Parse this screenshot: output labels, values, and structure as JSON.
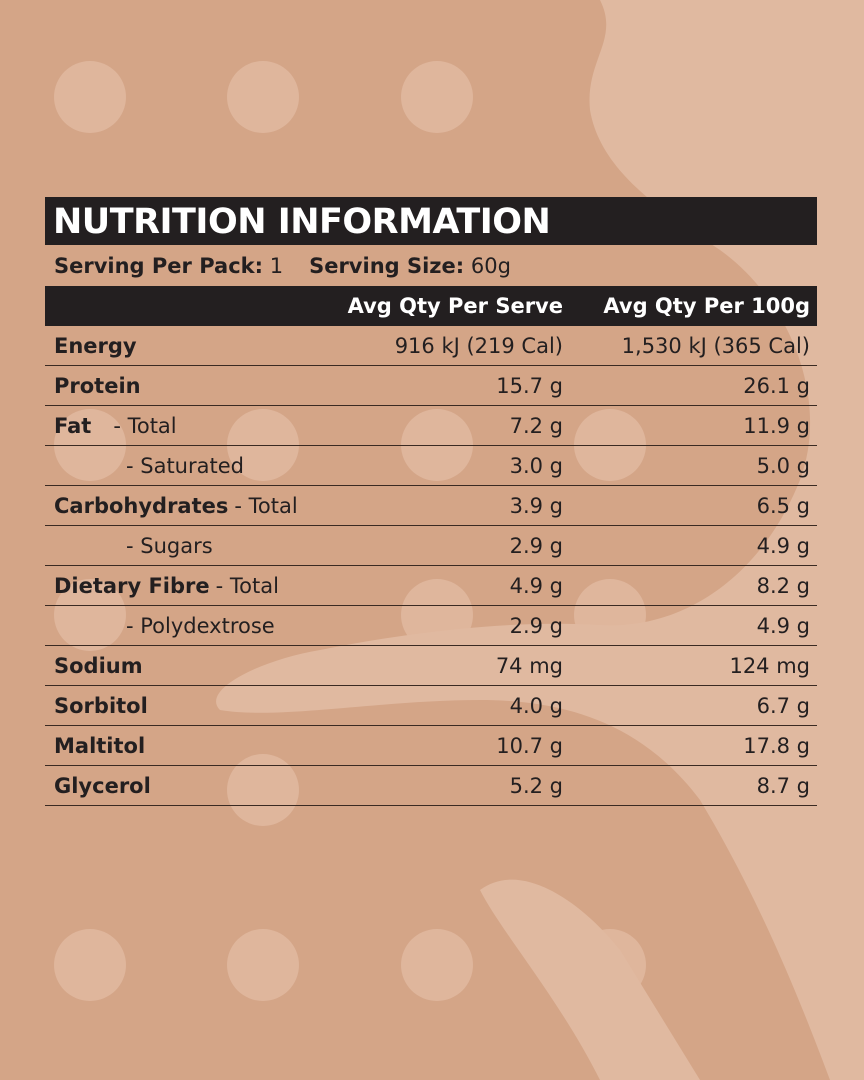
{
  "title": "NUTRITION INFORMATION",
  "serving": {
    "per_pack_label": "Serving Per Pack:",
    "per_pack_value": "1",
    "size_label": "Serving Size:",
    "size_value": "60g"
  },
  "columns": [
    "Avg Qty Per Serve",
    "Avg Qty Per 100g"
  ],
  "rows": [
    {
      "name": "Energy",
      "qualifier": "",
      "serve": "916 kJ (219 Cal)",
      "per100": "1,530 kJ (365 Cal)"
    },
    {
      "name": "Protein",
      "qualifier": "",
      "serve": "15.7 g",
      "per100": "26.1 g"
    },
    {
      "name": "Fat",
      "qualifier": "- Total",
      "serve": "7.2 g",
      "per100": "11.9 g"
    },
    {
      "name": "",
      "qualifier": "- Saturated",
      "serve": "3.0 g",
      "per100": "5.0 g"
    },
    {
      "name": "Carbohydrates",
      "qualifier": "- Total",
      "serve": "3.9 g",
      "per100": "6.5 g"
    },
    {
      "name": "",
      "qualifier": "- Sugars",
      "serve": "2.9 g",
      "per100": "4.9 g"
    },
    {
      "name": "Dietary Fibre",
      "qualifier": "- Total",
      "serve": "4.9 g",
      "per100": "8.2 g"
    },
    {
      "name": "",
      "qualifier": "- Polydextrose",
      "serve": "2.9 g",
      "per100": "4.9 g"
    },
    {
      "name": "Sodium",
      "qualifier": "",
      "serve": "74 mg",
      "per100": "124 mg"
    },
    {
      "name": "Sorbitol",
      "qualifier": "",
      "serve": "4.0 g",
      "per100": "6.7 g"
    },
    {
      "name": "Maltitol",
      "qualifier": "",
      "serve": "10.7 g",
      "per100": "17.8 g"
    },
    {
      "name": "Glycerol",
      "qualifier": "",
      "serve": "5.2 g",
      "per100": "8.7 g"
    }
  ],
  "colors": {
    "background": "#d4a587",
    "shape": "#e0b9a0",
    "bar": "#231f20"
  }
}
